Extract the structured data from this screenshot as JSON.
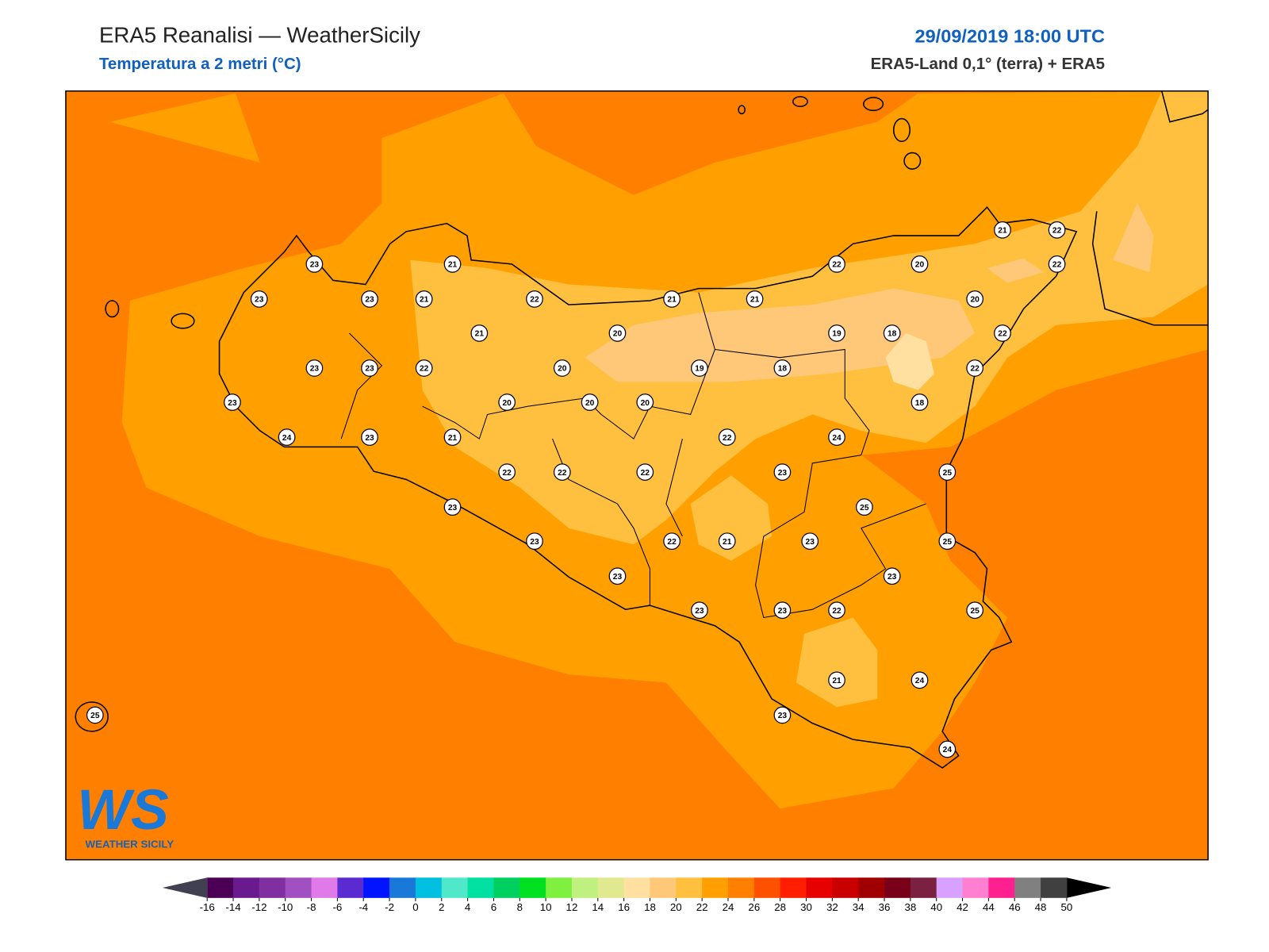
{
  "header": {
    "title": "ERA5 Reanalisi — WeatherSicily",
    "subtitle": "Temperatura a 2 metri (°C)",
    "date": "29/09/2019 18:00 UTC",
    "source": "ERA5-Land 0,1° (terra) + ERA5"
  },
  "logo": {
    "mark": "WS",
    "name": "WEATHER SICILY"
  },
  "stations": [
    23,
    23,
    23,
    21,
    21,
    22,
    21,
    20,
    21,
    21,
    22,
    20,
    21,
    22,
    22,
    20,
    22,
    19,
    18,
    18,
    19,
    20,
    22,
    23,
    23,
    23,
    20,
    20,
    20,
    18,
    22,
    24,
    23,
    21,
    22,
    24,
    22,
    22,
    22,
    23,
    25,
    23,
    25,
    23,
    22,
    21,
    23,
    25,
    23,
    23,
    23,
    23,
    22,
    25,
    21,
    24,
    23,
    25,
    24
  ],
  "colorbar": {
    "ticks": [
      -16,
      -14,
      -12,
      -10,
      -8,
      -6,
      -4,
      -2,
      0,
      2,
      4,
      6,
      8,
      10,
      12,
      14,
      16,
      18,
      20,
      22,
      24,
      26,
      28,
      30,
      32,
      34,
      36,
      38,
      40,
      42,
      44,
      46,
      48,
      50
    ],
    "colors": [
      "#4b0055",
      "#6a1a8f",
      "#7f2fa0",
      "#a050c0",
      "#e07ae8",
      "#5a2bd0",
      "#0014ff",
      "#1a78d8",
      "#00bfe0",
      "#50e8c8",
      "#00e0a0",
      "#00d060",
      "#00e020",
      "#80f040",
      "#c0f080",
      "#e0e890",
      "#ffe0a0",
      "#ffc878",
      "#ffc040",
      "#ffa000",
      "#ff8000",
      "#ff5000",
      "#ff1e00",
      "#e60000",
      "#c80000",
      "#a00000",
      "#780018",
      "#7a2040",
      "#d8a0ff",
      "#ff80d0",
      "#ff2090",
      "#808080",
      "#404040"
    ],
    "under": "#404050",
    "over": "#000000"
  }
}
